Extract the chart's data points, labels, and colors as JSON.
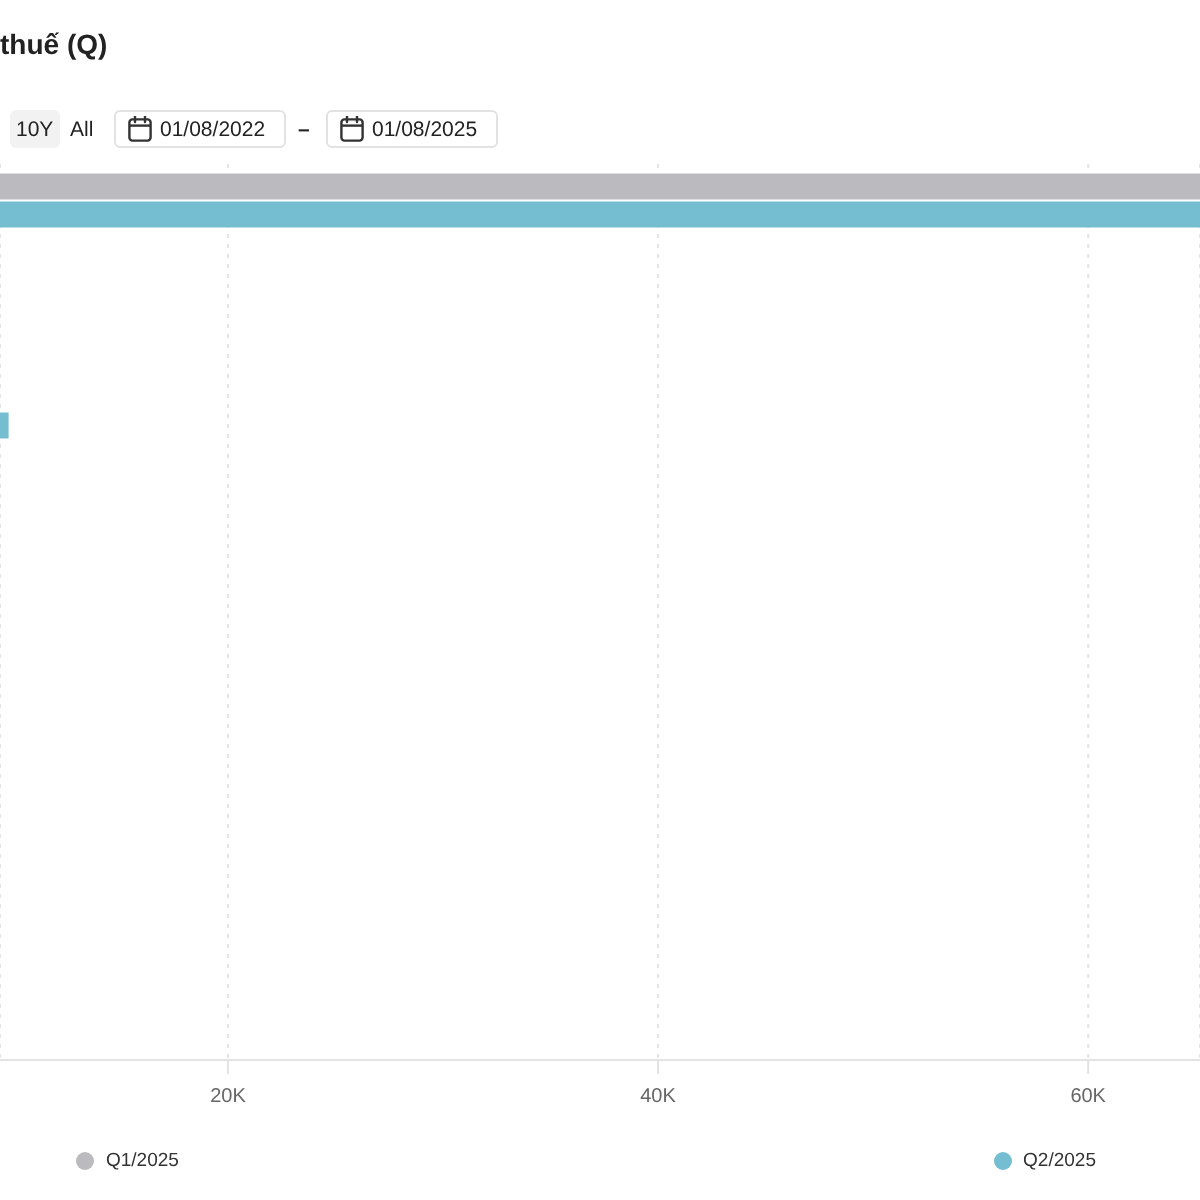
{
  "chart_data": {
    "type": "bar",
    "orientation": "horizontal",
    "title": "thuế (Q)",
    "annotations": [
      "10Y",
      "All",
      "01/08/2022",
      "–",
      "01/08/2025"
    ],
    "categories": [
      null,
      null,
      null,
      null
    ],
    "series": [
      {
        "name": "Q1/2025",
        "color": "#bbbabe",
        "values": [
          65200,
          null,
          null,
          null
        ]
      },
      {
        "name": "Q2/2025",
        "color": "#75bdd0",
        "values": [
          65200,
          9800,
          null,
          null
        ]
      }
    ],
    "xlim": [
      9400,
      65200
    ],
    "xticks": [
      {
        "value": 20000,
        "label": "20K"
      },
      {
        "value": 40000,
        "label": "40K"
      },
      {
        "value": 60000,
        "label": "60K"
      }
    ],
    "grid": "x",
    "legend": "bottom"
  }
}
